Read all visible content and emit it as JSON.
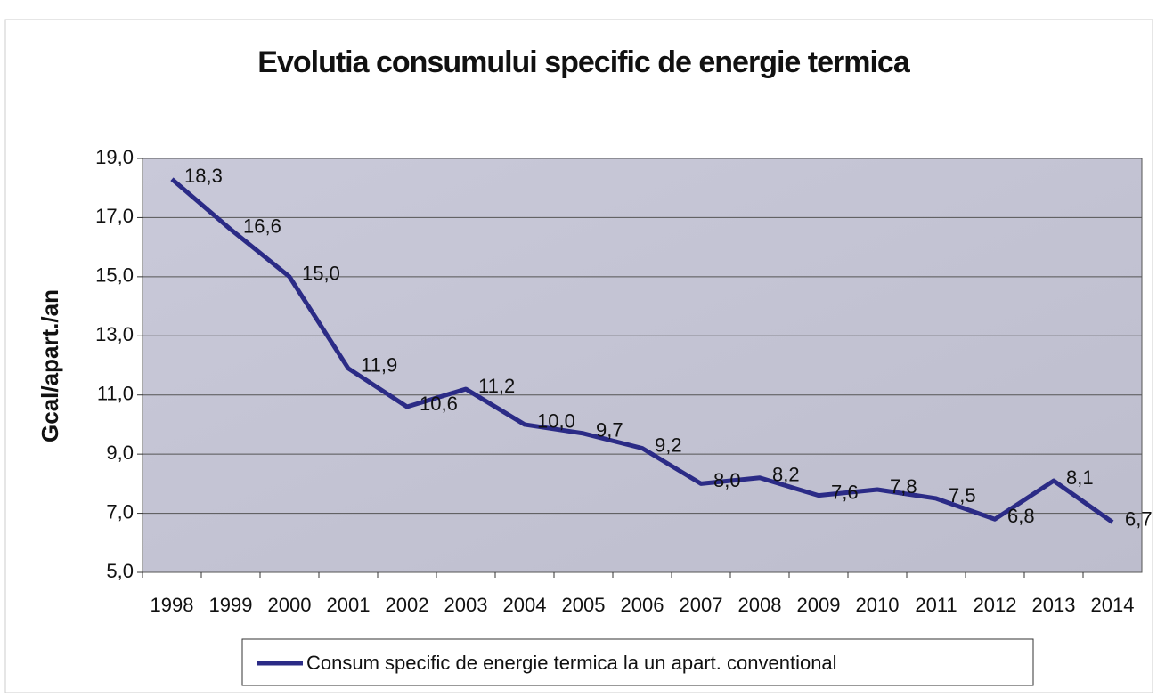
{
  "chart_data": {
    "type": "line",
    "title": "Evolutia consumului specific de energie termica",
    "y_label": "Gcal/apart./an",
    "categories": [
      "1998",
      "1999",
      "2000",
      "2001",
      "2002",
      "2003",
      "2004",
      "2005",
      "2006",
      "2007",
      "2008",
      "2009",
      "2010",
      "2011",
      "2012",
      "2013",
      "2014"
    ],
    "series": [
      {
        "name": "Consum specific de energie termica la un apart. conventional",
        "color": "#2b2b86",
        "values": [
          18.3,
          16.6,
          15.0,
          11.9,
          10.6,
          11.2,
          10.0,
          9.7,
          9.2,
          8.0,
          8.2,
          7.6,
          7.8,
          7.5,
          6.8,
          8.1,
          6.7
        ],
        "value_labels": [
          "18,3",
          "16,6",
          "15,0",
          "11,9",
          "10,6",
          "11,2",
          "10,0",
          "9,7",
          "9,2",
          "8,0",
          "8,2",
          "7,6",
          "7,8",
          "7,5",
          "6,8",
          "8,1",
          "6,7"
        ]
      }
    ],
    "ylim": [
      5,
      19
    ],
    "yticks": [
      {
        "value": 5,
        "label": "5,0"
      },
      {
        "value": 7,
        "label": "7,0"
      },
      {
        "value": 9,
        "label": "9,0"
      },
      {
        "value": 11,
        "label": "11,0"
      },
      {
        "value": 13,
        "label": "13,0"
      },
      {
        "value": 15,
        "label": "15,0"
      },
      {
        "value": 17,
        "label": "17,0"
      },
      {
        "value": 19,
        "label": "19,0"
      }
    ],
    "grid": true,
    "legend": "bottom"
  }
}
